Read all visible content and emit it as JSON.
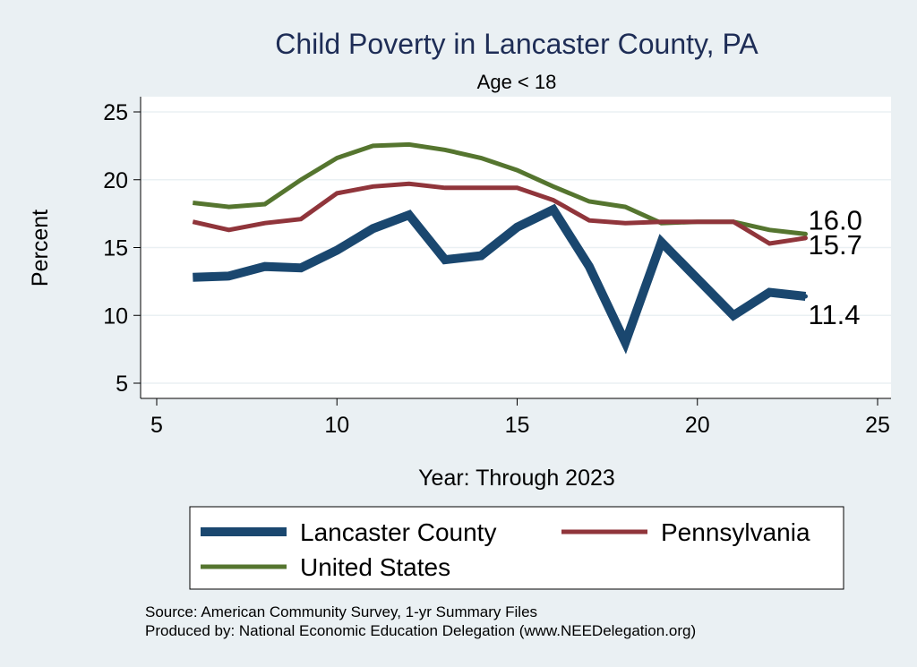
{
  "chart_data": {
    "type": "line",
    "title": "Child Poverty in Lancaster County, PA",
    "subtitle": "Age < 18",
    "xlabel": "Year: Through 2023",
    "ylabel": "Percent",
    "xlim": [
      5,
      25
    ],
    "ylim": [
      5,
      25
    ],
    "xticks": [
      5,
      10,
      15,
      20,
      25
    ],
    "yticks": [
      5,
      10,
      15,
      20,
      25
    ],
    "grid": true,
    "legend_position": "bottom",
    "series": [
      {
        "name": "Lancaster County",
        "color": "#1a476f",
        "x": [
          6,
          7,
          8,
          9,
          10,
          11,
          12,
          13,
          14,
          15,
          16,
          17,
          18,
          19,
          21,
          22,
          23
        ],
        "values": [
          12.8,
          12.9,
          13.6,
          13.5,
          14.8,
          16.4,
          17.4,
          14.1,
          14.4,
          16.5,
          17.8,
          13.6,
          8.0,
          15.4,
          10.0,
          11.7,
          11.4
        ],
        "end_label": "11.4"
      },
      {
        "name": "Pennsylvania",
        "color": "#90353b",
        "x": [
          6,
          7,
          8,
          9,
          10,
          11,
          12,
          13,
          14,
          15,
          16,
          17,
          18,
          19,
          20,
          21,
          22,
          23
        ],
        "values": [
          16.9,
          16.3,
          16.8,
          17.1,
          19.0,
          19.5,
          19.7,
          19.4,
          19.4,
          19.4,
          18.5,
          17.0,
          16.8,
          16.9,
          16.9,
          16.9,
          15.3,
          15.7
        ],
        "end_label": "15.7"
      },
      {
        "name": "United States",
        "color": "#55752f",
        "x": [
          6,
          7,
          8,
          9,
          10,
          11,
          12,
          13,
          14,
          15,
          16,
          17,
          18,
          19,
          20,
          21,
          22,
          23
        ],
        "values": [
          18.3,
          18.0,
          18.2,
          20.0,
          21.6,
          22.5,
          22.6,
          22.2,
          21.6,
          20.7,
          19.5,
          18.4,
          18.0,
          16.8,
          16.9,
          16.9,
          16.3,
          16.0
        ],
        "end_label": "16.0"
      }
    ]
  },
  "source_line": "Source: American Community Survey, 1-yr Summary Files",
  "produced_line": "Produced by: National Economic Education Delegation (www.NEEDelegation.org)"
}
